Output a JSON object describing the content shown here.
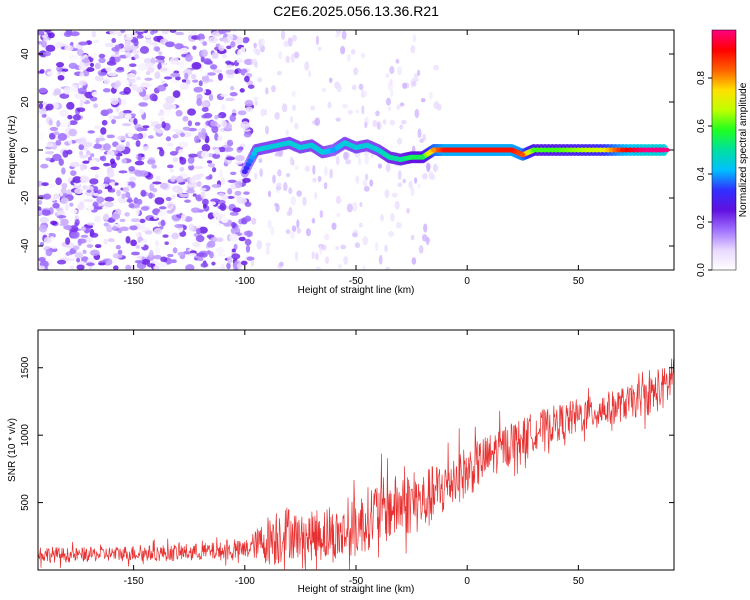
{
  "figure": {
    "title": "C2E6.2025.056.13.36.R21"
  },
  "chart_data": [
    {
      "type": "heatmap",
      "xlabel": "Height of straight line (km)",
      "ylabel": "Frequency (Hz)",
      "xlim": [
        -193,
        93
      ],
      "ylim": [
        -50,
        50
      ],
      "xticks": [
        -150,
        -100,
        -50,
        0,
        50
      ],
      "yticks": [
        -40,
        -20,
        0,
        20,
        40
      ],
      "colorbar": {
        "label": "Normalized spectral amplitude",
        "range": [
          0,
          1
        ],
        "ticks": [
          0.0,
          0.2,
          0.4,
          0.6,
          0.8
        ],
        "colormap": [
          "#ffffff",
          "#e8d8ff",
          "#a070ff",
          "#6010e0",
          "#3030ff",
          "#00c0ff",
          "#00e0a0",
          "#20ff20",
          "#c0ff00",
          "#ffe000",
          "#ff6000",
          "#ff0000",
          "#ff0080"
        ]
      },
      "ridge": {
        "x": [
          -100,
          -95,
          -90,
          -85,
          -80,
          -75,
          -70,
          -65,
          -60,
          -55,
          -50,
          -45,
          -40,
          -35,
          -30,
          -25,
          -20,
          -15,
          -10,
          -5,
          0,
          5,
          10,
          15,
          20,
          25,
          30,
          40,
          50,
          60,
          70,
          80,
          90
        ],
        "frequency": [
          -9,
          0,
          1,
          2,
          3,
          1,
          2,
          -1,
          0,
          3,
          1,
          2,
          0,
          -3,
          -4,
          -3,
          -3,
          0,
          0,
          0,
          0,
          0,
          0,
          0,
          0,
          -2,
          0,
          0,
          0,
          0,
          0,
          0,
          0
        ],
        "amplitude": [
          0.3,
          0.45,
          0.45,
          0.45,
          0.45,
          0.45,
          0.45,
          0.45,
          0.4,
          0.45,
          0.45,
          0.45,
          0.45,
          0.5,
          0.5,
          0.55,
          0.55,
          0.8,
          0.9,
          0.9,
          0.9,
          0.9,
          0.9,
          0.9,
          0.9,
          0.85,
          0.6,
          0.6,
          0.65,
          0.7,
          0.9,
          1.0,
          1.0
        ]
      },
      "noise_region": {
        "x_range": [
          -193,
          -97
        ],
        "frequency_range": [
          -50,
          50
        ],
        "amplitude": 0.25
      }
    },
    {
      "type": "line",
      "xlabel": "Height of straight line (km)",
      "ylabel": "SNR (10 * v/v)",
      "xlim": [
        -193,
        93
      ],
      "ylim": [
        0,
        1780
      ],
      "xticks": [
        -150,
        -100,
        -50,
        0,
        50
      ],
      "yticks": [
        500,
        1000,
        1500
      ],
      "series": [
        {
          "color": "#e83030",
          "x": [
            -193,
            -180,
            -170,
            -160,
            -150,
            -140,
            -130,
            -120,
            -110,
            -100,
            -95,
            -90,
            -85,
            -80,
            -75,
            -70,
            -65,
            -60,
            -55,
            -50,
            -45,
            -40,
            -35,
            -30,
            -25,
            -20,
            -15,
            -10,
            -5,
            0,
            5,
            10,
            15,
            20,
            25,
            30,
            35,
            40,
            45,
            50,
            55,
            60,
            65,
            70,
            75,
            80,
            85,
            90,
            93
          ],
          "values": [
            120,
            110,
            115,
            120,
            125,
            125,
            130,
            135,
            140,
            150,
            190,
            220,
            260,
            280,
            240,
            250,
            280,
            250,
            270,
            310,
            380,
            430,
            450,
            480,
            500,
            500,
            560,
            620,
            700,
            720,
            790,
            840,
            900,
            950,
            980,
            1030,
            1060,
            1090,
            1110,
            1140,
            1160,
            1190,
            1200,
            1230,
            1250,
            1280,
            1320,
            1360,
            1500
          ],
          "noise": [
            70,
            60,
            60,
            60,
            65,
            65,
            70,
            70,
            75,
            80,
            120,
            200,
            260,
            220,
            180,
            200,
            240,
            220,
            230,
            250,
            260,
            280,
            270,
            260,
            260,
            250,
            250,
            240,
            230,
            210,
            200,
            190,
            180,
            170,
            160,
            160,
            150,
            150,
            150,
            150,
            140,
            140,
            140,
            140,
            140,
            150,
            170,
            180,
            200
          ]
        }
      ]
    }
  ]
}
